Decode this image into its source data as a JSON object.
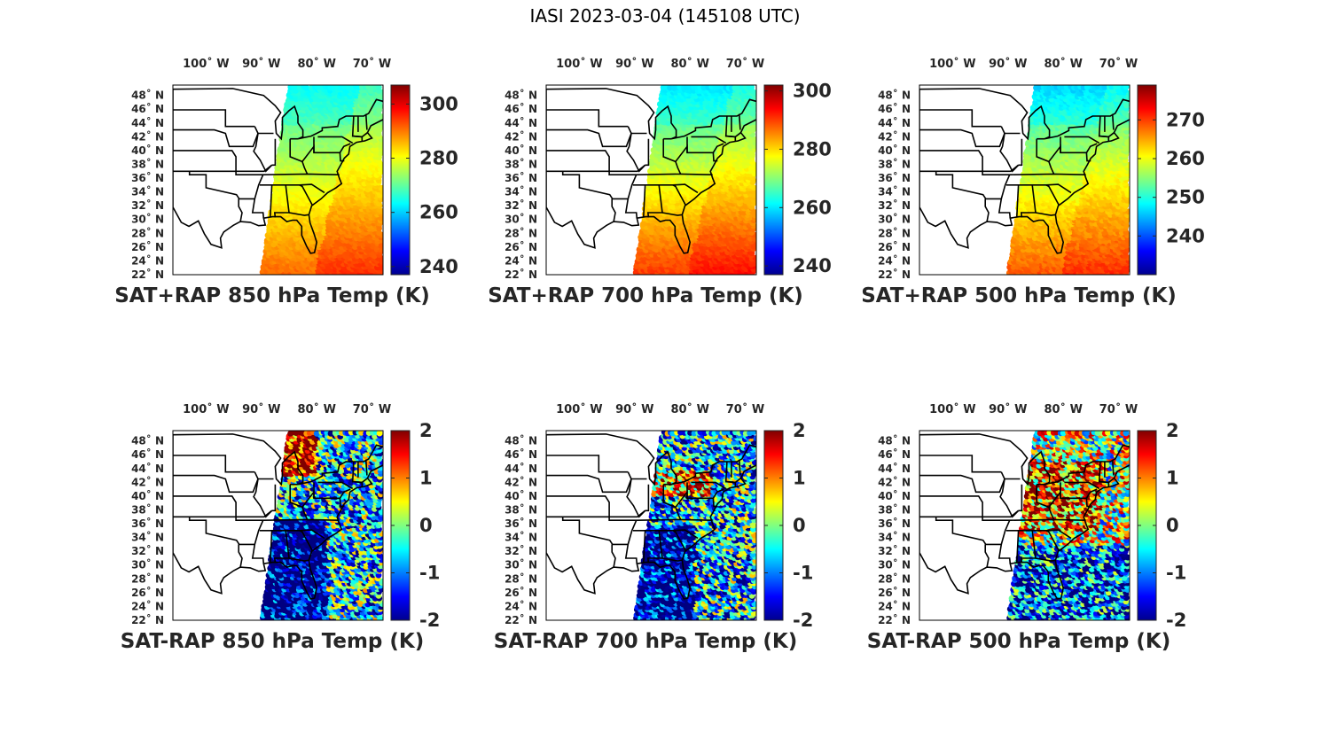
{
  "figure": {
    "title": "IASI 2023-03-04 (145108 UTC)"
  },
  "map": {
    "lon_ticks": [
      "100˚ W",
      "90˚ W",
      "80˚ W",
      "70˚ W"
    ],
    "lon_values": [
      -100,
      -90,
      -80,
      -70
    ],
    "lat_ticks": [
      "48˚ N",
      "46˚ N",
      "44˚ N",
      "42˚ N",
      "40˚ N",
      "38˚ N",
      "36˚ N",
      "34˚ N",
      "32˚ N",
      "30˚ N",
      "28˚ N",
      "26˚ N",
      "24˚ N",
      "22˚ N"
    ],
    "lat_values": [
      48,
      46,
      44,
      42,
      40,
      38,
      36,
      34,
      32,
      30,
      28,
      26,
      24,
      22
    ],
    "lon_range": [
      -106,
      -68
    ],
    "lat_range": [
      22,
      49.5
    ],
    "colormap": "jet"
  },
  "panels": [
    {
      "title": "SAT+RAP 850 hPa Temp (K)",
      "colorbar_ticks": [
        "300",
        "280",
        "260",
        "240"
      ],
      "colorbar_values": [
        300,
        280,
        260,
        240
      ],
      "clim": [
        237,
        307
      ],
      "field": "sum",
      "field_base": 284,
      "field_lat_gradient": -0.95,
      "field_land_offset": -4
    },
    {
      "title": "SAT+RAP 700 hPa Temp (K)",
      "colorbar_ticks": [
        "300",
        "280",
        "260",
        "240"
      ],
      "colorbar_values": [
        300,
        280,
        260,
        240
      ],
      "clim": [
        237,
        302
      ],
      "field": "sum",
      "field_base": 281,
      "field_lat_gradient": -1.05,
      "field_land_offset": -3
    },
    {
      "title": "SAT+RAP 500 hPa Temp (K)",
      "colorbar_ticks": [
        "270",
        "260",
        "250",
        "240"
      ],
      "colorbar_values": [
        270,
        260,
        250,
        240
      ],
      "clim": [
        230,
        279
      ],
      "field": "sum",
      "field_base": 262,
      "field_lat_gradient": -0.75,
      "field_land_offset": -2
    },
    {
      "title": "SAT-RAP 850 hPa Temp (K)",
      "colorbar_ticks": [
        "2",
        "1",
        "0",
        "-1",
        "-2"
      ],
      "colorbar_values": [
        2,
        1,
        0,
        -1,
        -2
      ],
      "clim": [
        -2,
        2
      ],
      "field": "diff",
      "diff_seed": 11,
      "diff_bias": -0.6
    },
    {
      "title": "SAT-RAP 700 hPa Temp (K)",
      "colorbar_ticks": [
        "2",
        "1",
        "0",
        "-1",
        "-2"
      ],
      "colorbar_values": [
        2,
        1,
        0,
        -1,
        -2
      ],
      "clim": [
        -2,
        2
      ],
      "field": "diff",
      "diff_seed": 23,
      "diff_bias": -0.7
    },
    {
      "title": "SAT-RAP 500 hPa Temp (K)",
      "colorbar_ticks": [
        "2",
        "1",
        "0",
        "-1",
        "-2"
      ],
      "colorbar_values": [
        2,
        1,
        0,
        -1,
        -2
      ],
      "clim": [
        -2,
        2
      ],
      "field": "diff",
      "diff_seed": 37,
      "diff_bias": 0.2
    }
  ],
  "swath": {
    "top_left": [
      -85,
      49.5
    ],
    "top_right": [
      -68,
      49.5
    ],
    "bottom_left": [
      -90,
      22
    ],
    "bottom_right": [
      -68,
      22
    ]
  },
  "colors": {
    "background": "#ffffff",
    "text": "#262626",
    "outline": "#000000"
  }
}
